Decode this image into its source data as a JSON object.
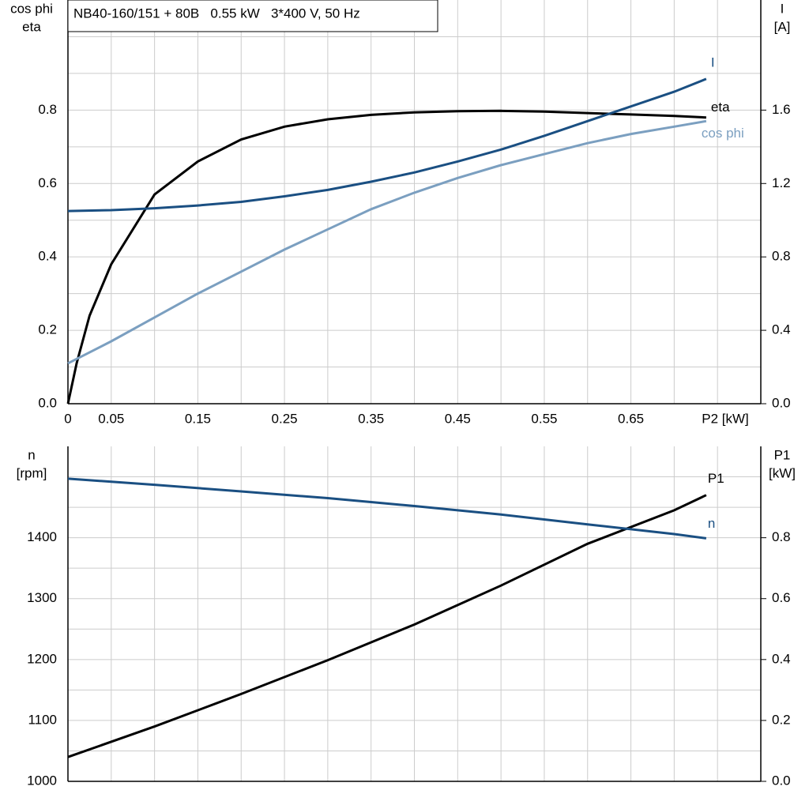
{
  "chart_data": [
    {
      "type": "line",
      "title": "NB40-160/151 + 80B   0.55 kW   3*400 V, 50 Hz",
      "x_label": "P2 [kW]",
      "y_label": [
        "cos phi",
        "eta"
      ],
      "y2_label": [
        "I",
        "[A]"
      ],
      "xlim": [
        0,
        0.8
      ],
      "xticks": [
        0,
        0.05,
        0.15,
        0.25,
        0.35,
        0.45,
        0.55,
        0.65
      ],
      "xgrid": [
        0.1,
        0.2,
        0.3,
        0.4,
        0.5,
        0.6,
        0.7,
        0.75
      ],
      "ylim": [
        0,
        1.1
      ],
      "yticks": [
        {
          "value": 0,
          "label": "0.0"
        },
        0.2,
        0.4,
        0.6,
        0.8
      ],
      "ygrid": [
        0.1,
        0.3,
        0.5,
        0.7,
        0.9,
        1.0
      ],
      "y2lim": [
        0,
        2.2
      ],
      "y2ticks": [
        {
          "value": 0,
          "label": "0.0"
        },
        0.4,
        0.8,
        1.2,
        1.6
      ],
      "grid": true,
      "series": [
        {
          "name": "eta",
          "color": "#000000",
          "x": [
            0,
            0.01,
            0.025,
            0.05,
            0.1,
            0.15,
            0.2,
            0.25,
            0.3,
            0.35,
            0.4,
            0.45,
            0.5,
            0.55,
            0.6,
            0.65,
            0.7,
            0.737
          ],
          "values": [
            0,
            0.11,
            0.24,
            0.38,
            0.57,
            0.66,
            0.72,
            0.755,
            0.775,
            0.787,
            0.794,
            0.797,
            0.798,
            0.796,
            0.792,
            0.788,
            0.784,
            0.78
          ]
        },
        {
          "name": "I",
          "color": "#1a4f82",
          "axis": "y2",
          "x": [
            0,
            0.05,
            0.1,
            0.15,
            0.2,
            0.25,
            0.3,
            0.35,
            0.4,
            0.45,
            0.5,
            0.55,
            0.6,
            0.65,
            0.7,
            0.737
          ],
          "values": [
            1.05,
            1.055,
            1.065,
            1.08,
            1.1,
            1.13,
            1.165,
            1.21,
            1.26,
            1.32,
            1.385,
            1.46,
            1.54,
            1.62,
            1.7,
            1.77
          ]
        },
        {
          "name": "cos phi",
          "color": "#7b9fc0",
          "x": [
            0,
            0.05,
            0.1,
            0.15,
            0.2,
            0.25,
            0.3,
            0.35,
            0.4,
            0.45,
            0.5,
            0.55,
            0.6,
            0.65,
            0.7,
            0.737
          ],
          "values": [
            0.11,
            0.17,
            0.235,
            0.3,
            0.36,
            0.42,
            0.475,
            0.53,
            0.575,
            0.615,
            0.65,
            0.68,
            0.71,
            0.735,
            0.755,
            0.77
          ]
        }
      ]
    },
    {
      "type": "line",
      "y_label": [
        "n",
        "[rpm]"
      ],
      "y2_label": [
        "P1",
        "[kW]"
      ],
      "xlim": [
        0,
        0.8
      ],
      "xgrid": [
        0.05,
        0.1,
        0.15,
        0.2,
        0.25,
        0.3,
        0.35,
        0.4,
        0.45,
        0.5,
        0.55,
        0.6,
        0.65,
        0.7,
        0.75
      ],
      "ylim": [
        1000,
        1550
      ],
      "yticks": [
        1000,
        1100,
        1200,
        1300,
        1400
      ],
      "ygrid": [
        1050,
        1150,
        1250,
        1350,
        1450,
        1500
      ],
      "y2lim": [
        0,
        1.1
      ],
      "y2ticks": [
        {
          "value": 0,
          "label": "0.0"
        },
        0.2,
        0.4,
        0.6,
        0.8
      ],
      "grid": true,
      "series": [
        {
          "name": "P1",
          "color": "#000000",
          "axis": "y2",
          "x": [
            0,
            0.1,
            0.2,
            0.3,
            0.4,
            0.5,
            0.6,
            0.7,
            0.737
          ],
          "values": [
            0.08,
            0.18,
            0.287,
            0.398,
            0.515,
            0.643,
            0.78,
            0.89,
            0.94
          ]
        },
        {
          "name": "n",
          "color": "#1a4f82",
          "x": [
            0,
            0.1,
            0.2,
            0.3,
            0.4,
            0.5,
            0.6,
            0.7,
            0.737
          ],
          "values": [
            1497,
            1487,
            1476,
            1465,
            1452,
            1438,
            1422,
            1406,
            1399
          ]
        }
      ]
    }
  ]
}
